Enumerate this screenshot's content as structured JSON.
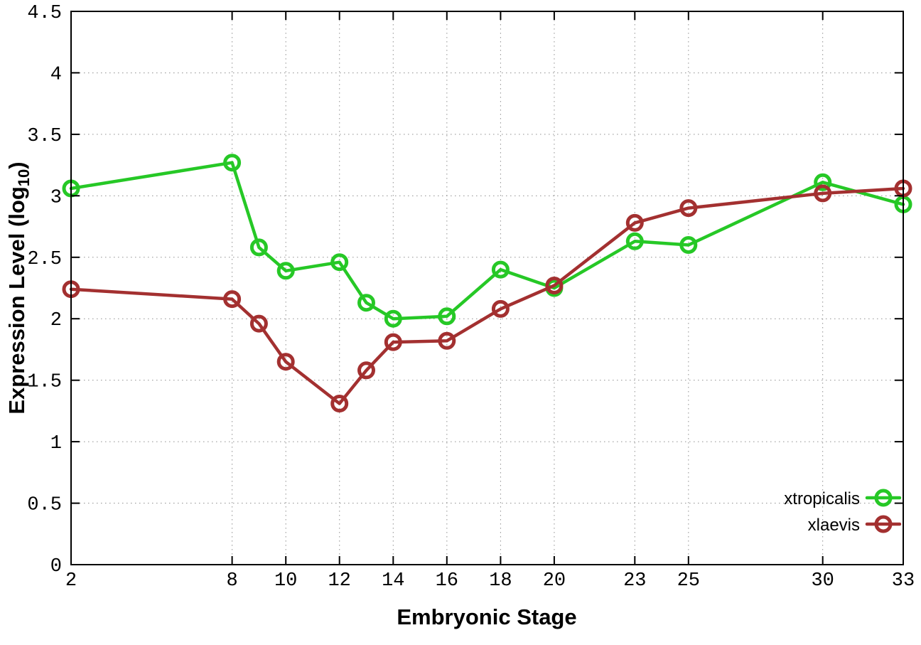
{
  "chart_data": {
    "type": "line",
    "title": "",
    "xlabel": "Embryonic Stage",
    "ylabel": "Expression Level (log10)",
    "ylabel_parts": {
      "pre": "Expression Level (log",
      "sub": "10",
      "post": ")"
    },
    "xlim": [
      2,
      33
    ],
    "ylim": [
      0,
      4.5
    ],
    "xticks": [
      2,
      8,
      10,
      12,
      14,
      16,
      18,
      20,
      23,
      25,
      30,
      33
    ],
    "xtick_labels": [
      "2",
      "8",
      "10",
      "12",
      "14",
      "16",
      "18",
      "20",
      "23",
      "25",
      "30",
      "33"
    ],
    "yticks": [
      0,
      0.5,
      1,
      1.5,
      2,
      2.5,
      3,
      3.5,
      4,
      4.5
    ],
    "ytick_labels": [
      "0",
      "0.5",
      "1",
      "1.5",
      "2",
      "2.5",
      "3",
      "3.5",
      "4",
      "4.5"
    ],
    "grid": true,
    "legend_position": "bottom-right",
    "x": [
      2,
      8,
      9,
      10,
      12,
      13,
      14,
      16,
      18,
      20,
      23,
      25,
      30,
      33
    ],
    "series": [
      {
        "name": "xtropicalis",
        "color": "#26c826",
        "values": [
          3.06,
          3.27,
          2.58,
          2.39,
          2.46,
          2.13,
          2.0,
          2.02,
          2.4,
          2.25,
          2.63,
          2.6,
          3.11,
          2.93
        ]
      },
      {
        "name": "xlaevis",
        "color": "#a33030",
        "values": [
          2.24,
          2.16,
          1.96,
          1.65,
          1.31,
          1.58,
          1.81,
          1.82,
          2.08,
          2.27,
          2.78,
          2.9,
          3.02,
          3.06
        ]
      }
    ]
  }
}
